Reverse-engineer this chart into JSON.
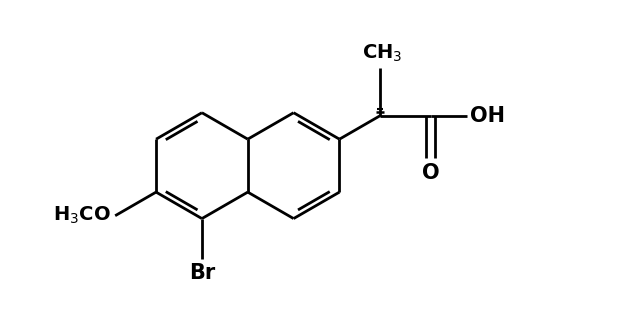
{
  "background_color": "#ffffff",
  "line_color": "#000000",
  "line_width": 2.0,
  "figure_width": 6.4,
  "figure_height": 3.15,
  "dpi": 100,
  "xlim": [
    -0.5,
    6.5
  ],
  "ylim": [
    -1.6,
    2.2
  ]
}
